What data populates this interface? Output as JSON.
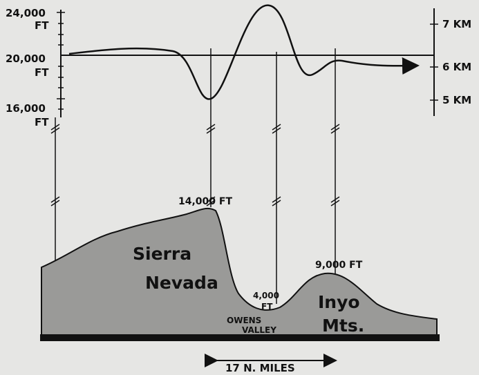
{
  "left_axis": [
    {
      "number": "24,000",
      "unit": "FT"
    },
    {
      "number": "20,000",
      "unit": "FT"
    },
    {
      "number": "16,000",
      "unit": "FT"
    }
  ],
  "right_axis": [
    "7 KM",
    "6 KM",
    "5 KM"
  ],
  "peaks": {
    "sierra": "14,000 FT",
    "inyo": "9,000 FT",
    "valley": {
      "number": "4,000",
      "unit": "FT"
    }
  },
  "regions": {
    "sierra": [
      "Sierra",
      "Nevada"
    ],
    "valley": [
      "OWENS",
      "VALLEY"
    ],
    "inyo": [
      "Inyo",
      "Mts."
    ]
  },
  "scale": "17 N. MILES"
}
